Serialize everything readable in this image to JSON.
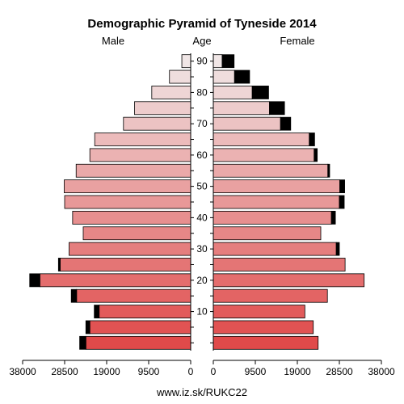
{
  "chart_data": {
    "type": "bar",
    "title": "Demographic Pyramid of Tyneside 2014",
    "left_label": "Male",
    "center_label": "Age",
    "right_label": "Female",
    "footer": "www.iz.sk/RUKC22",
    "xlim": [
      0,
      38000
    ],
    "x_ticks": [
      0,
      9500,
      19000,
      28500,
      38000
    ],
    "age_ticks": [
      10,
      20,
      30,
      40,
      50,
      60,
      70,
      80,
      90
    ],
    "age_groups": [
      "0-4",
      "5-9",
      "10-14",
      "15-19",
      "20-24",
      "25-29",
      "30-34",
      "35-39",
      "40-44",
      "45-49",
      "50-54",
      "55-59",
      "60-64",
      "65-69",
      "70-74",
      "75-79",
      "80-84",
      "85-89",
      "90+"
    ],
    "series": [
      {
        "name": "Male",
        "values": [
          23700,
          22800,
          20700,
          25800,
          34100,
          29500,
          27500,
          24300,
          26700,
          28500,
          28600,
          25900,
          22800,
          21700,
          15200,
          12700,
          8800,
          4800,
          2000
        ],
        "excess": [
          1400,
          900,
          1100,
          1200,
          2300,
          400,
          0,
          0,
          0,
          0,
          0,
          0,
          0,
          0,
          0,
          0,
          0,
          0,
          0
        ]
      },
      {
        "name": "Female",
        "values": [
          23700,
          22600,
          20700,
          25800,
          34100,
          29800,
          27800,
          24300,
          26700,
          28500,
          28600,
          25900,
          22800,
          21700,
          15200,
          12700,
          8800,
          4800,
          2000
        ],
        "excess": [
          0,
          0,
          0,
          0,
          0,
          0,
          700,
          0,
          900,
          1100,
          1100,
          400,
          700,
          1200,
          2300,
          3400,
          3700,
          3400,
          2700
        ]
      }
    ],
    "colors": {
      "excess": "#000000",
      "stroke": "#000000",
      "bottom_fill": "#e04a4a",
      "top_fill": "#f0e6e6"
    }
  }
}
